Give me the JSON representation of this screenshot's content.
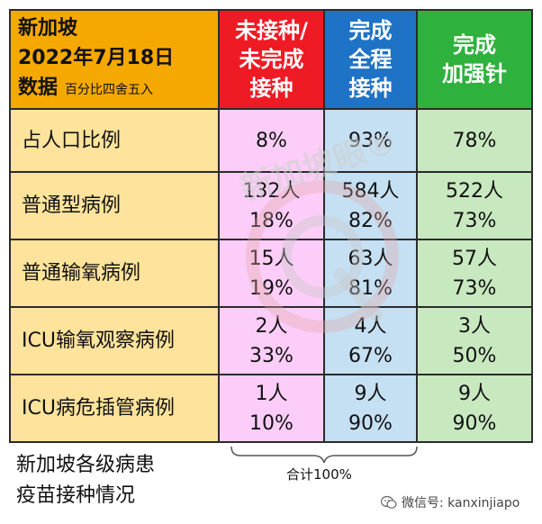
{
  "header": {
    "corner_line1": "新加坡",
    "corner_line2": "2022年7月18日",
    "corner_line3": "数据",
    "corner_note": "百分比四舍五入",
    "col1_line1": "未接种/",
    "col1_line2": "未完成",
    "col1_line3": "接种",
    "col2_line1": "完成",
    "col2_line2": "全程",
    "col2_line3": "接种",
    "col3_line1": "完成",
    "col3_line2": "加强针"
  },
  "rows": [
    {
      "label": "占人口比例",
      "c1": [
        "8%"
      ],
      "c2": [
        "93%"
      ],
      "c3": [
        "78%"
      ]
    },
    {
      "label": "普通型病例",
      "c1": [
        "132人",
        "18%"
      ],
      "c2": [
        "584人",
        "82%"
      ],
      "c3": [
        "522人",
        "73%"
      ]
    },
    {
      "label": "普通输氧病例",
      "c1": [
        "15人",
        "19%"
      ],
      "c2": [
        "63人",
        "81%"
      ],
      "c3": [
        "57人",
        "73%"
      ]
    },
    {
      "label": "ICU输氧观察病例",
      "c1": [
        "2人",
        "33%"
      ],
      "c2": [
        "4人",
        "67%"
      ],
      "c3": [
        "3人",
        "50%"
      ]
    },
    {
      "label": "ICU病危插管病例",
      "c1": [
        "1人",
        "10%"
      ],
      "c2": [
        "9人",
        "90%"
      ],
      "c3": [
        "9人",
        "90%"
      ]
    }
  ],
  "footer": {
    "caption_line1": "新加坡各级病患",
    "caption_line2": "疫苗接种情况",
    "total_label": "合计100%",
    "wechat_label": "微信号: kanxinjiapo"
  },
  "watermark": {
    "text": "新加坡眼®",
    "color": "#d9d9d9"
  },
  "colors": {
    "unvaccinated": "#ee1b24",
    "fully_vaccinated": "#1f73c6",
    "boosted": "#2fb13d",
    "corner": "#f5a900"
  }
}
